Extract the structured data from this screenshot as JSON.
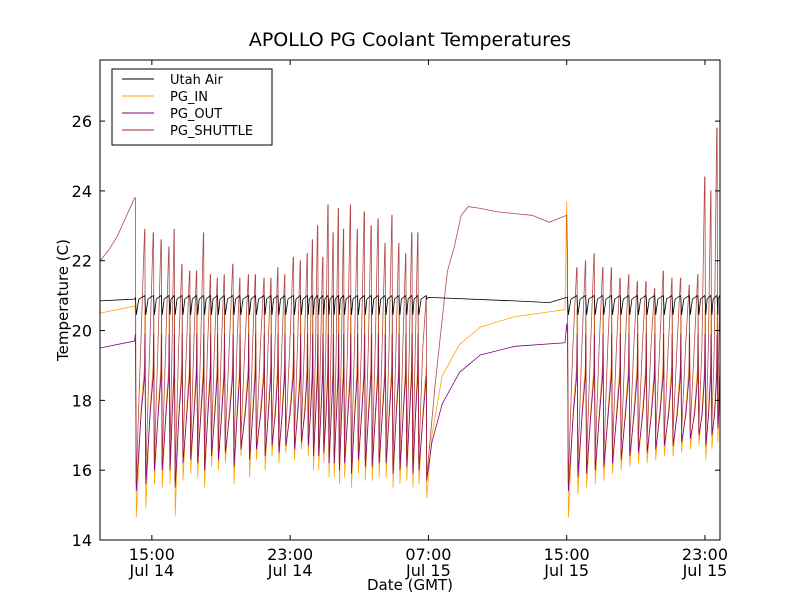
{
  "chart_data": {
    "type": "line",
    "title": "APOLLO PG Coolant Temperatures",
    "xlabel": "Date (GMT)",
    "ylabel": "Temperature (C)",
    "x_unit": "hours since Jul 14 12:00 GMT",
    "xlim": [
      0,
      35.87
    ],
    "ylim": [
      14,
      27.75
    ],
    "grid": false,
    "legend_position": "top-left",
    "yticks": [
      14,
      16,
      18,
      20,
      22,
      24,
      26
    ],
    "ytick_labels": [
      "14",
      "16",
      "18",
      "20",
      "22",
      "24",
      "26"
    ],
    "xticks": [
      3,
      11,
      19,
      27,
      35
    ],
    "xtick_labels": [
      [
        "15:00",
        "Jul 14"
      ],
      [
        "23:00",
        "Jul 14"
      ],
      [
        "07:00",
        "Jul 15"
      ],
      [
        "15:00",
        "Jul 15"
      ],
      [
        "23:00",
        "Jul 15"
      ]
    ],
    "legend": [
      {
        "name": "Utah Air",
        "color": "#000000"
      },
      {
        "name": "PG_IN",
        "color": "#ffa500"
      },
      {
        "name": "PG_OUT",
        "color": "#800080"
      },
      {
        "name": "PG_SHUTTLE",
        "color": "#a52a2a"
      }
    ],
    "series": [
      {
        "name": "Utah Air",
        "color": "#000000",
        "x": [
          0,
          2.0,
          2.05,
          2.1,
          2.4,
          18.9,
          19.0,
          24.0,
          26.0,
          27.0,
          27.05,
          27.4,
          35.87
        ],
        "y": [
          20.85,
          20.9,
          20.95,
          20.45,
          20.9,
          20.9,
          20.95,
          20.85,
          20.8,
          20.95,
          20.5,
          20.95,
          21.0
        ]
      },
      {
        "name": "PG_IN",
        "color": "#ffa500",
        "x": [
          0,
          2.0,
          18.9,
          19.2,
          19.8,
          20.8,
          22.0,
          24.0,
          26.9,
          27.0
        ],
        "y": [
          20.5,
          20.7,
          15.2,
          17.0,
          18.7,
          19.6,
          20.1,
          20.4,
          20.6,
          23.7
        ]
      },
      {
        "name": "PG_OUT",
        "color": "#800080",
        "x": [
          0,
          2.0,
          18.9,
          19.2,
          19.8,
          20.8,
          22.0,
          24.0,
          26.9,
          27.0
        ],
        "y": [
          19.5,
          19.7,
          15.7,
          16.8,
          17.9,
          18.8,
          19.3,
          19.55,
          19.65,
          20.2
        ]
      },
      {
        "name": "PG_SHUTTLE",
        "color": "#a52a2a",
        "x": [
          0,
          0.5,
          1.0,
          2.0,
          18.9,
          19.4,
          20.1,
          20.5,
          20.9,
          21.3,
          22.0,
          23.0,
          24.0,
          25.0,
          26.0,
          26.5,
          27.0
        ],
        "y": [
          22.0,
          22.3,
          22.7,
          23.8,
          15.8,
          18.5,
          21.7,
          22.4,
          23.3,
          23.55,
          23.5,
          23.4,
          23.35,
          23.3,
          23.1,
          23.2,
          23.3
        ]
      }
    ],
    "cycles": {
      "description": "cyclical chiller events: time (h), PG_SHUTTLE peak, PG_IN trough, PG_OUT trough",
      "segment_1": {
        "t": [
          2.05,
          4.3,
          6.0,
          7.7,
          8.6,
          9.5,
          10.3,
          11.2,
          12.0,
          12.6,
          13.2,
          13.8,
          14.5,
          15.3,
          16.1,
          16.9,
          17.7,
          18.4,
          2.6,
          3.1,
          3.55,
          4.0,
          4.75,
          5.2,
          5.6,
          6.4,
          6.8,
          7.2,
          8.1,
          9.0,
          9.9,
          10.7,
          11.6,
          12.3,
          12.9,
          13.5,
          14.1,
          14.9,
          15.7,
          16.5,
          17.3,
          18.05
        ],
        "peak": [
          23.8,
          22.9,
          22.8,
          21.9,
          21.6,
          21.5,
          21.8,
          22.1,
          22.2,
          23.0,
          23.6,
          23.5,
          23.6,
          23.4,
          23.2,
          23.3,
          22.2,
          22.8,
          22.9,
          22.8,
          22.6,
          22.4,
          21.9,
          21.7,
          21.7,
          21.6,
          21.5,
          21.6,
          21.5,
          21.6,
          21.5,
          21.6,
          22.0,
          22.6,
          22.1,
          22.8,
          22.9,
          22.9,
          23.0,
          22.5,
          22.5,
          22.8
        ],
        "in_min": [
          14.65,
          14.7,
          15.5,
          15.6,
          15.8,
          16.0,
          16.2,
          16.3,
          16.4,
          16.0,
          15.8,
          15.6,
          15.5,
          15.7,
          15.8,
          15.5,
          15.7,
          15.6,
          14.9,
          15.6,
          15.5,
          15.6,
          15.7,
          15.9,
          15.8,
          16.1,
          16.0,
          16.2,
          16.4,
          16.3,
          16.4,
          16.5,
          16.6,
          16.0,
          16.2,
          15.8,
          15.8,
          15.9,
          15.7,
          15.8,
          15.6,
          15.5
        ],
        "out_min": [
          15.4,
          15.5,
          16.0,
          16.1,
          16.3,
          16.4,
          16.5,
          16.6,
          16.7,
          16.4,
          16.2,
          16.0,
          15.9,
          16.1,
          16.2,
          15.9,
          16.1,
          16.0,
          15.6,
          16.0,
          16.0,
          16.0,
          16.2,
          16.3,
          16.2,
          16.4,
          16.3,
          16.5,
          16.6,
          16.6,
          16.7,
          16.7,
          16.8,
          16.4,
          16.5,
          16.2,
          16.2,
          16.3,
          16.1,
          16.2,
          16.0,
          15.9
        ]
      },
      "segment_2": {
        "t": [
          27.05,
          27.6,
          28.1,
          28.6,
          29.1,
          29.6,
          30.1,
          30.6,
          31.1,
          31.6,
          32.1,
          32.6,
          33.1,
          33.6,
          34.1,
          34.6,
          35.0,
          35.35,
          35.7
        ],
        "peak": [
          22.1,
          21.8,
          22.0,
          22.2,
          21.8,
          21.8,
          21.5,
          21.6,
          21.4,
          21.4,
          21.2,
          21.7,
          21.5,
          21.5,
          21.3,
          21.6,
          24.4,
          24.0,
          25.8
        ],
        "in_min": [
          14.65,
          15.3,
          15.5,
          15.6,
          15.7,
          15.9,
          16.0,
          16.1,
          16.2,
          16.2,
          16.3,
          16.4,
          16.4,
          16.5,
          16.6,
          16.7,
          16.3,
          16.6,
          16.8
        ],
        "out_min": [
          15.4,
          15.8,
          15.9,
          16.0,
          16.1,
          16.2,
          16.3,
          16.4,
          16.5,
          16.5,
          16.6,
          16.7,
          16.7,
          16.8,
          16.9,
          17.0,
          16.7,
          17.0,
          17.2
        ]
      }
    }
  }
}
